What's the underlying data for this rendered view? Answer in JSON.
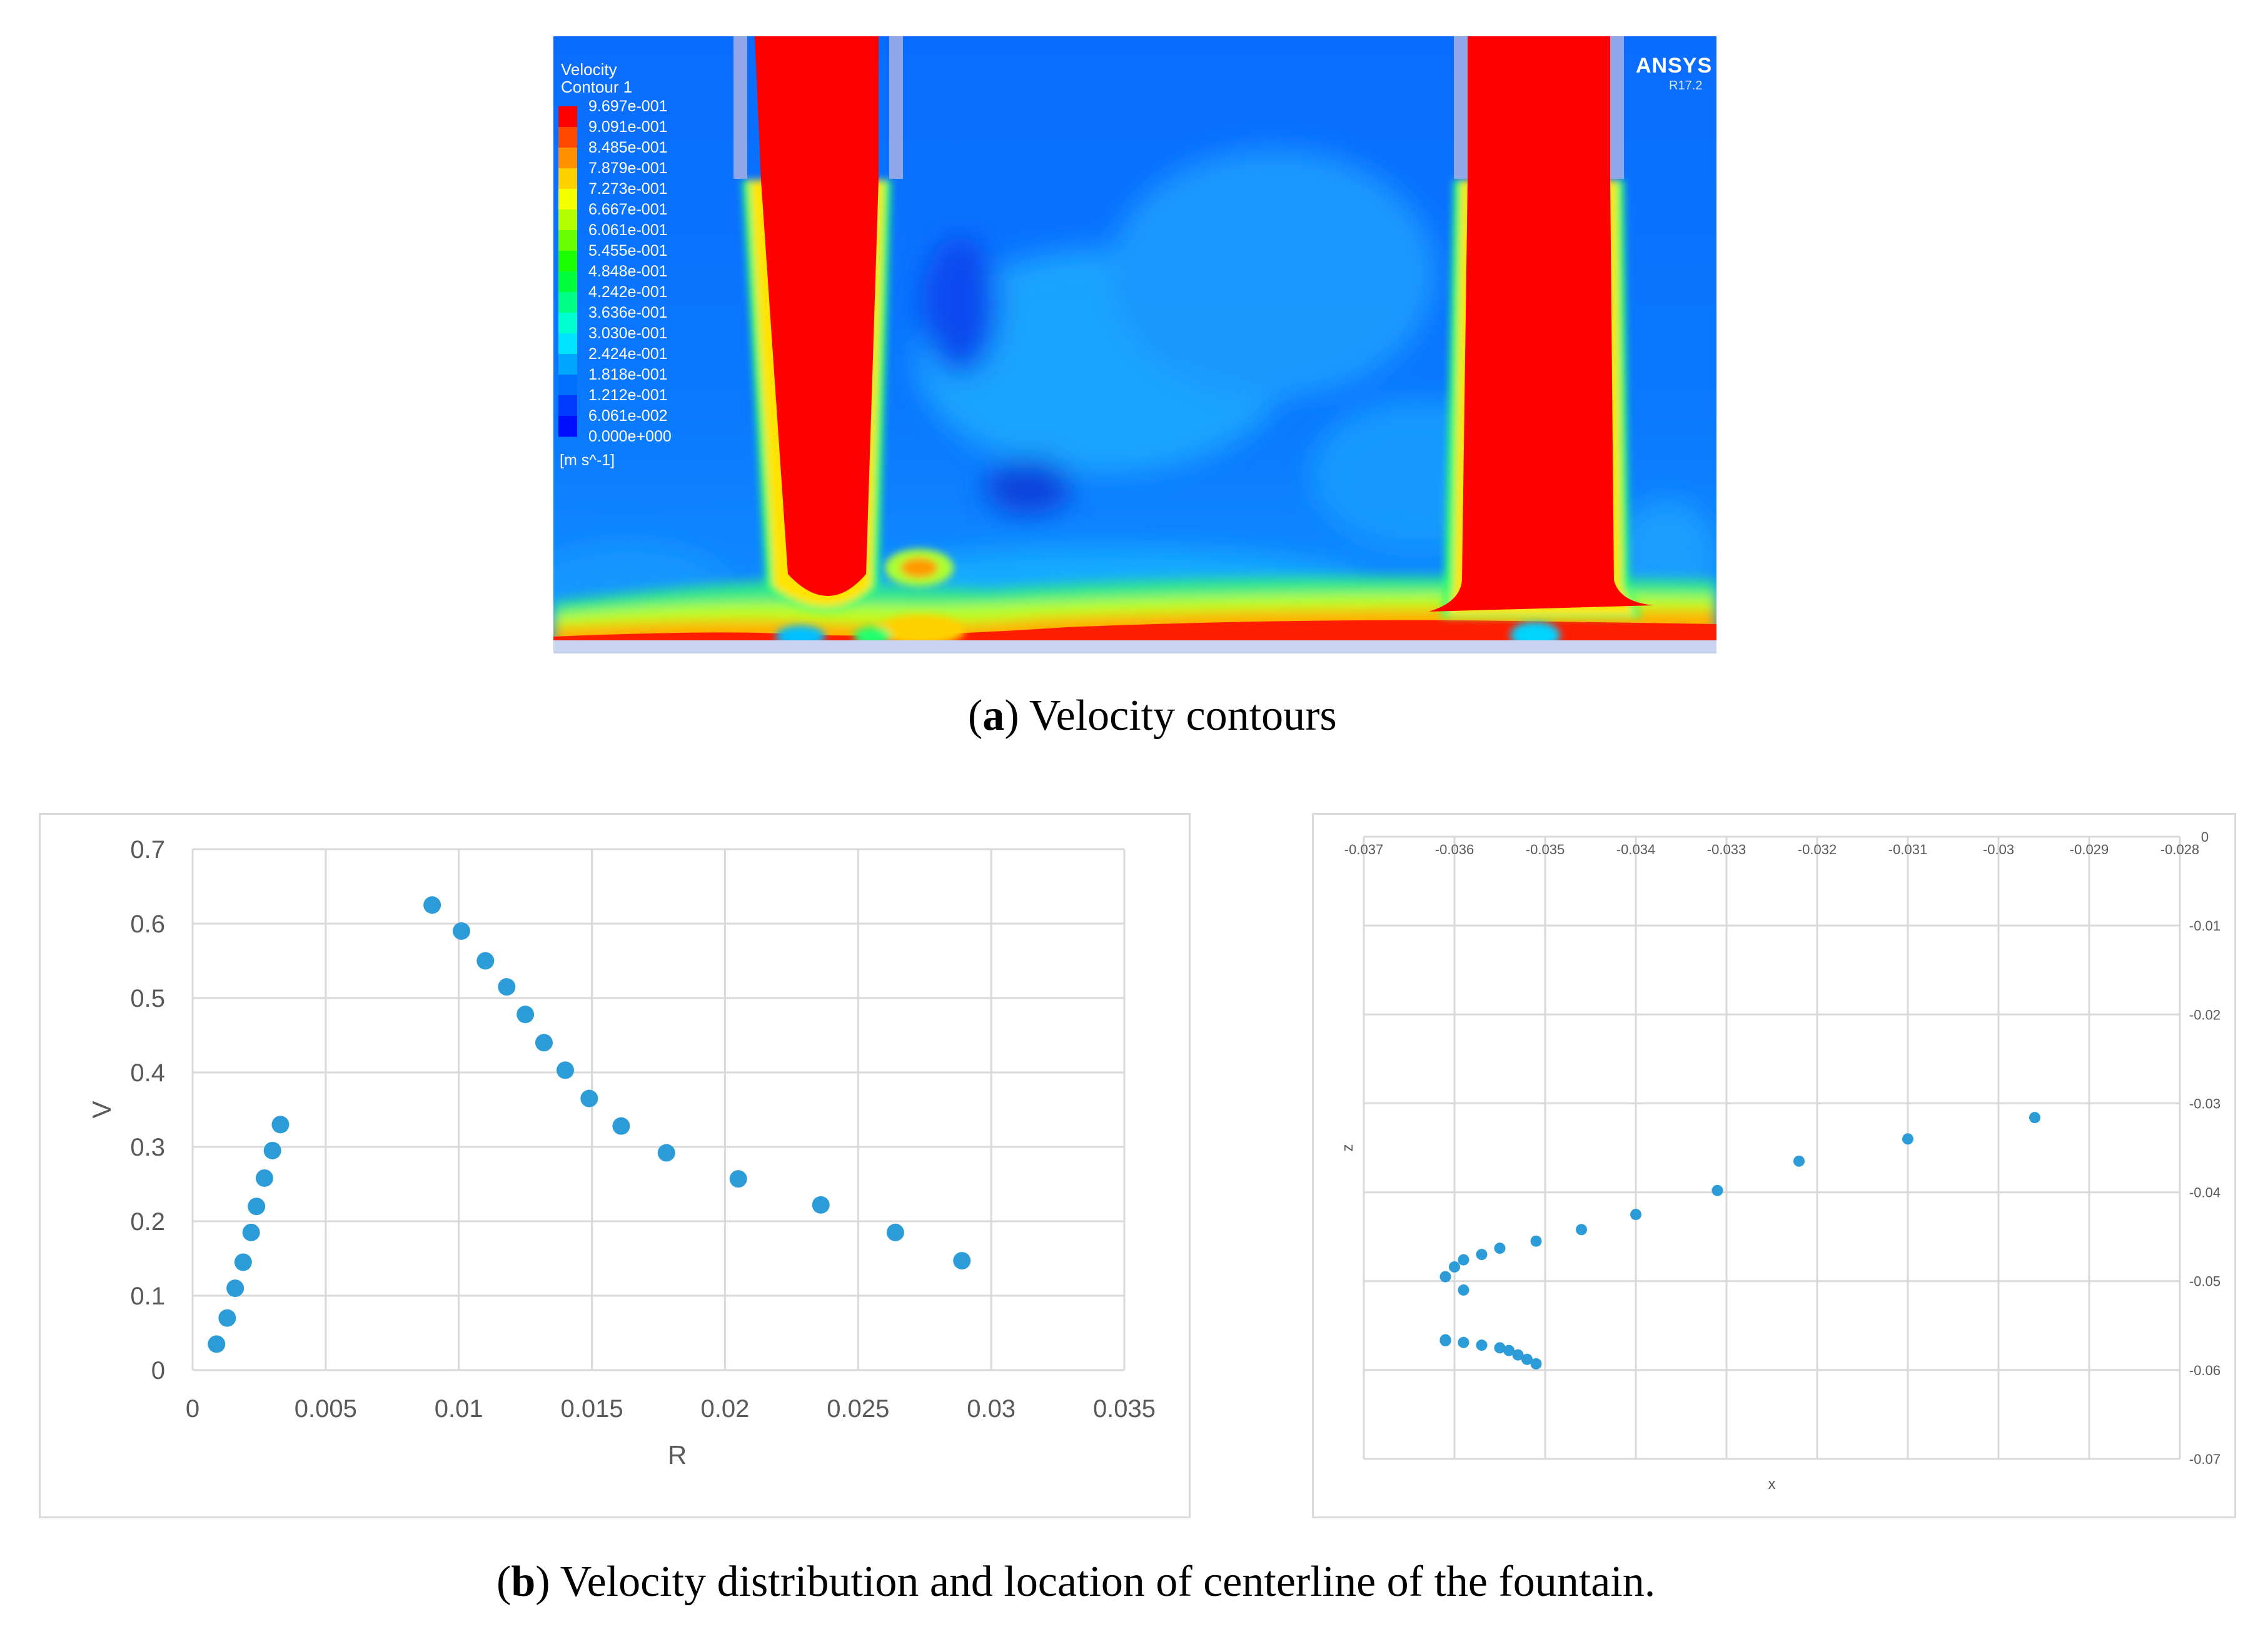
{
  "panel_a": {
    "legend": {
      "title_line1": "Velocity",
      "title_line2": "Contour 1",
      "levels": [
        "9.697e-001",
        "9.091e-001",
        "8.485e-001",
        "7.879e-001",
        "7.273e-001",
        "6.667e-001",
        "6.061e-001",
        "5.455e-001",
        "4.848e-001",
        "4.242e-001",
        "3.636e-001",
        "3.030e-001",
        "2.424e-001",
        "1.818e-001",
        "1.212e-001",
        "6.061e-002",
        "0.000e+000"
      ],
      "unit": "[m s^-1]",
      "colors": [
        "#ff0000",
        "#ff4a00",
        "#ff9000",
        "#ffd000",
        "#f4ff00",
        "#b4ff00",
        "#68ff00",
        "#1cff00",
        "#00ff3a",
        "#00ff86",
        "#00ffcf",
        "#00e4ff",
        "#00a6ff",
        "#0070ff",
        "#003cff",
        "#0010ff"
      ]
    },
    "brand": "ANSYS",
    "version": "R17.2",
    "caption_label": "a",
    "caption_text": "Velocity contours"
  },
  "caption_b": {
    "label": "b",
    "text": "Velocity distribution and location of centerline of the fountain."
  },
  "chart_data": [
    {
      "type": "scatter",
      "title": "",
      "xlabel": "R",
      "ylabel": "V",
      "xlim": [
        0,
        0.035
      ],
      "ylim": [
        0,
        0.7
      ],
      "xticks": [
        "0",
        "0.005",
        "0.01",
        "0.015",
        "0.02",
        "0.025",
        "0.03",
        "0.035"
      ],
      "yticks": [
        "0",
        "0.1",
        "0.2",
        "0.3",
        "0.4",
        "0.5",
        "0.6",
        "0.7"
      ],
      "grid": true,
      "marker_color": "#2b9cd8",
      "series": [
        {
          "name": "velocity",
          "x": [
            0.0009,
            0.0013,
            0.0016,
            0.0019,
            0.0022,
            0.0024,
            0.0027,
            0.003,
            0.0033,
            0.009,
            0.0101,
            0.011,
            0.0118,
            0.0125,
            0.0132,
            0.014,
            0.0149,
            0.0161,
            0.0178,
            0.0205,
            0.0236,
            0.0264,
            0.0289
          ],
          "y": [
            0.035,
            0.07,
            0.11,
            0.145,
            0.185,
            0.22,
            0.258,
            0.295,
            0.33,
            0.625,
            0.59,
            0.55,
            0.515,
            0.478,
            0.44,
            0.403,
            0.365,
            0.328,
            0.292,
            0.257,
            0.222,
            0.185,
            0.147
          ]
        }
      ]
    },
    {
      "type": "scatter",
      "title": "",
      "xlabel": "x",
      "ylabel": "z",
      "xlim": [
        -0.037,
        -0.028
      ],
      "ylim": [
        -0.07,
        0
      ],
      "xticks": [
        "-0.037",
        "-0.036",
        "-0.035",
        "-0.034",
        "-0.033",
        "-0.032",
        "-0.031",
        "-0.03",
        "-0.029",
        "-0.028"
      ],
      "yticks": [
        "0",
        "-0.01",
        "-0.02",
        "-0.03",
        "-0.04",
        "-0.05",
        "-0.06",
        "-0.07"
      ],
      "grid": true,
      "marker_color": "#2b9cd8",
      "series": [
        {
          "name": "centerline",
          "x": [
            -0.0296,
            -0.031,
            -0.0322,
            -0.0331,
            -0.034,
            -0.0346,
            -0.0351,
            -0.0355,
            -0.0357,
            -0.0359,
            -0.036,
            -0.0361,
            -0.0359,
            -0.0361,
            -0.0361,
            -0.0359,
            -0.0357,
            -0.0355,
            -0.0354,
            -0.0353,
            -0.0352,
            -0.0351
          ],
          "y": [
            -0.0316,
            -0.034,
            -0.0365,
            -0.0398,
            -0.0425,
            -0.0442,
            -0.0455,
            -0.0463,
            -0.047,
            -0.0476,
            -0.0484,
            -0.0495,
            -0.051,
            -0.0566,
            -0.0567,
            -0.0569,
            -0.0572,
            -0.0575,
            -0.0578,
            -0.0583,
            -0.0588,
            -0.0593
          ]
        }
      ]
    }
  ]
}
